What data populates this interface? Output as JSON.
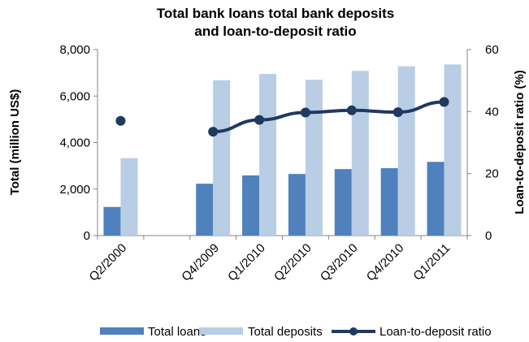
{
  "chart_data": {
    "type": "bar",
    "title": "Total bank loans total bank deposits",
    "subtitle": "and loan-to-deposit ratio",
    "categories": [
      "Q2/2000",
      "",
      "Q4/2009",
      "Q1/2010",
      "Q2/2010",
      "Q3/2010",
      "Q4/2010",
      "Q1/2011"
    ],
    "series": [
      {
        "name": "Total loans",
        "type": "bar",
        "axis": "left",
        "color": "#4f81bd",
        "values": [
          1230,
          null,
          2230,
          2590,
          2650,
          2860,
          2900,
          3170
        ]
      },
      {
        "name": "Total deposits",
        "type": "bar",
        "axis": "left",
        "color": "#b9cde5",
        "values": [
          3330,
          null,
          6680,
          6950,
          6700,
          7080,
          7280,
          7360
        ]
      },
      {
        "name": "Loan-to-deposit ratio",
        "type": "line",
        "axis": "right",
        "color": "#1f3a5f",
        "values": [
          37,
          null,
          33.5,
          37.3,
          39.7,
          40.4,
          39.8,
          43.1
        ]
      }
    ],
    "ylabel": "Total (million US$)",
    "y2label": "Loan-to-deposit ratio (%)",
    "ylim": [
      0,
      8000
    ],
    "y2lim": [
      0,
      60
    ],
    "yticks": [
      "0",
      "2,000",
      "4,000",
      "6,000",
      "8,000"
    ],
    "y2ticks": [
      "0",
      "20",
      "40",
      "60"
    ],
    "grid": false,
    "legend_position": "bottom"
  }
}
